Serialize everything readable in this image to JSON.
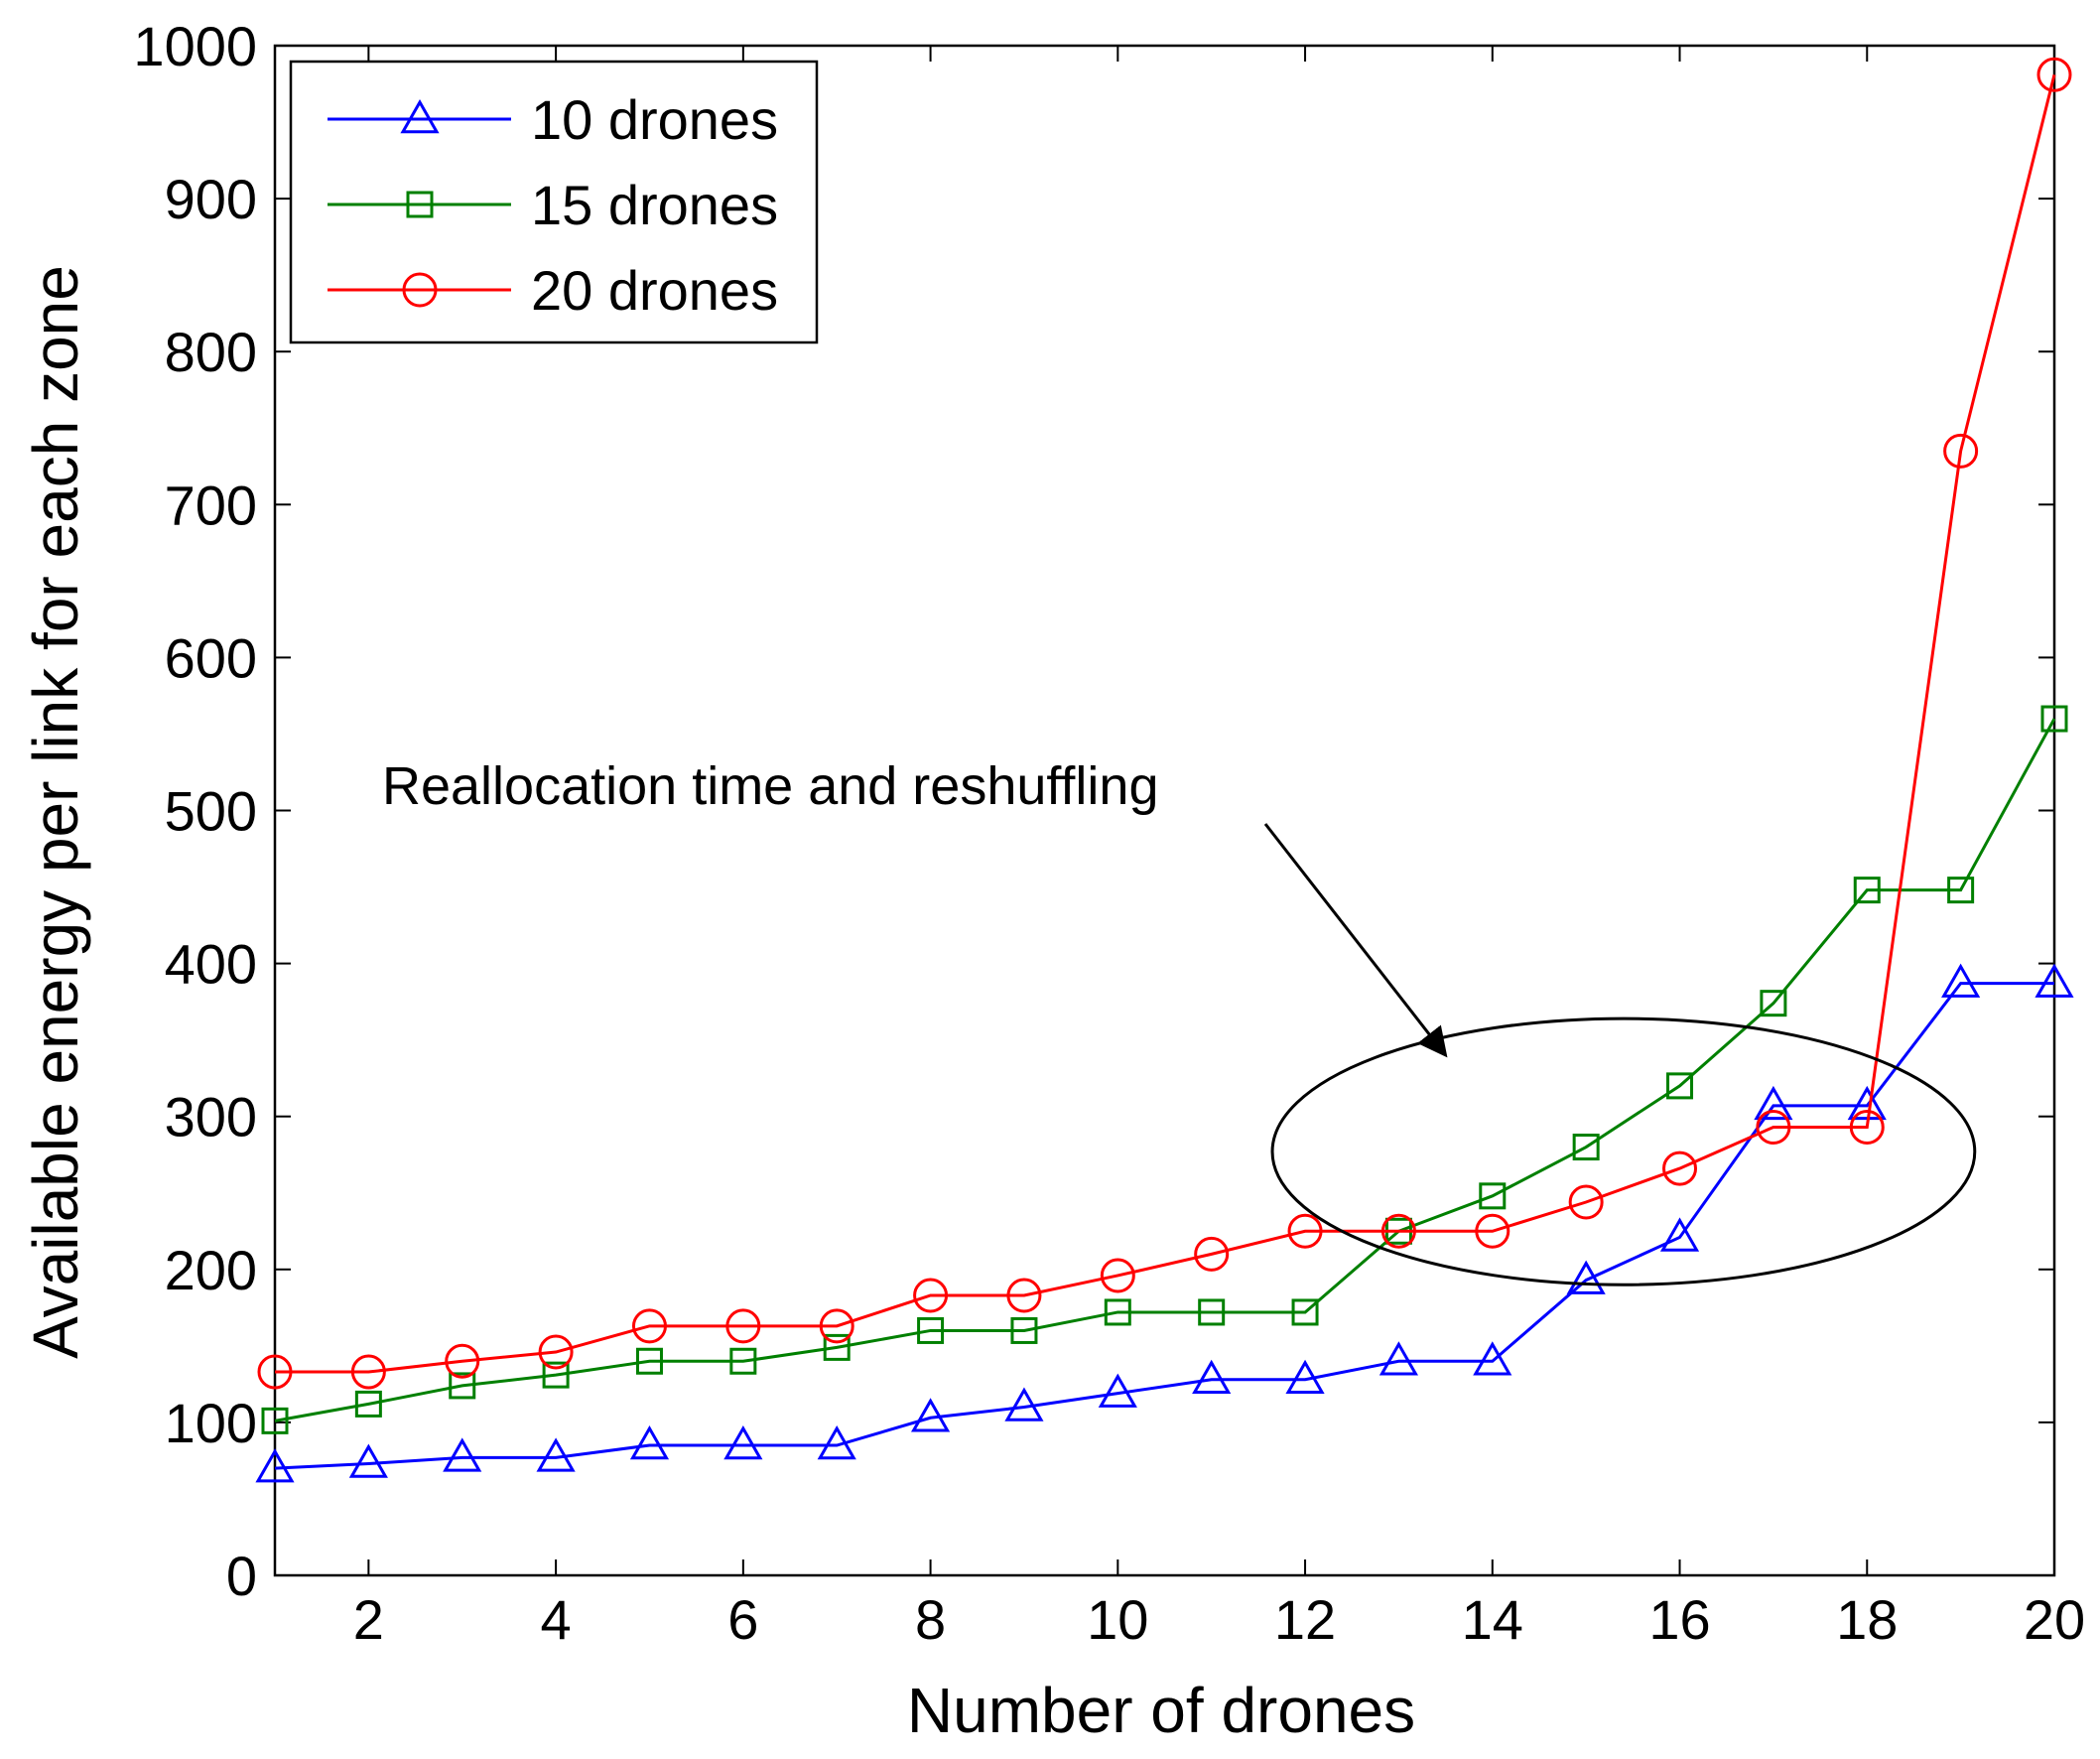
{
  "chart_data": {
    "type": "line",
    "title": "",
    "xlabel": "Number of drones",
    "ylabel": "Available energy per link for each zone",
    "xlim": [
      1,
      20
    ],
    "ylim": [
      0,
      1000
    ],
    "x": [
      1,
      2,
      3,
      4,
      5,
      6,
      7,
      8,
      9,
      10,
      11,
      12,
      13,
      14,
      15,
      16,
      17,
      18,
      19,
      20
    ],
    "x_ticks": [
      2,
      4,
      6,
      8,
      10,
      12,
      14,
      16,
      18,
      20
    ],
    "x_tick_labels": [
      "2",
      "4",
      "6",
      "8",
      "10",
      "12",
      "14",
      "16",
      "18",
      "20"
    ],
    "y_ticks": [
      0,
      100,
      200,
      300,
      400,
      500,
      600,
      700,
      800,
      900,
      1000
    ],
    "y_tick_labels": [
      "0",
      "100",
      "200",
      "300",
      "400",
      "500",
      "600",
      "700",
      "800",
      "900",
      "1000"
    ],
    "grid": false,
    "legend_position": "top-left",
    "series": [
      {
        "name": "10 drones",
        "color": "#0000ff",
        "marker": "triangle",
        "values": [
          70,
          73,
          77,
          77,
          85,
          85,
          85,
          103,
          110,
          119,
          128,
          128,
          140,
          140,
          193,
          221,
          307,
          307,
          387,
          387
        ]
      },
      {
        "name": "15 drones",
        "color": "#008000",
        "marker": "square",
        "values": [
          101,
          112,
          124,
          131,
          140,
          140,
          149,
          160,
          160,
          172,
          172,
          172,
          225,
          248,
          280,
          320,
          374,
          448,
          448,
          560
        ]
      },
      {
        "name": "20 drones",
        "color": "#ff0000",
        "marker": "circle",
        "values": [
          133,
          133,
          140,
          146,
          163,
          163,
          163,
          183,
          183,
          196,
          210,
          225,
          225,
          225,
          244,
          266,
          293,
          293,
          735,
          981
        ]
      }
    ],
    "annotations": [
      {
        "text": "Reallocation time and reshuffling",
        "arrow_target": [
          13.5,
          340
        ],
        "ellipse_center": [
          15.4,
          277
        ],
        "ellipse_radius": [
          3.75,
          87
        ]
      }
    ]
  }
}
